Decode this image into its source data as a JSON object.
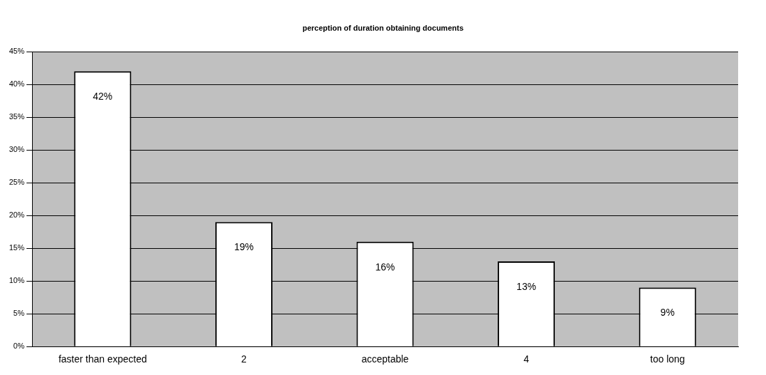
{
  "chart_data": {
    "type": "bar",
    "title": "perception of duration obtaining documents",
    "categories": [
      "faster than expected",
      "2",
      "acceptable",
      "4",
      "too long"
    ],
    "values": [
      42,
      19,
      16,
      13,
      9
    ],
    "value_labels": [
      "42%",
      "19%",
      "16%",
      "13%",
      "9%"
    ],
    "color": "#ffffff",
    "ylim": [
      0,
      45
    ],
    "yticks": [
      {
        "value": 0,
        "label": "0%"
      },
      {
        "value": 5,
        "label": "5%"
      },
      {
        "value": 10,
        "label": "10%"
      },
      {
        "value": 15,
        "label": "15%"
      },
      {
        "value": 20,
        "label": "20%"
      },
      {
        "value": 25,
        "label": "25%"
      },
      {
        "value": 30,
        "label": "30%"
      },
      {
        "value": 35,
        "label": "35%"
      },
      {
        "value": 40,
        "label": "40%"
      },
      {
        "value": 45,
        "label": "45%"
      }
    ],
    "grid": "y",
    "legend": false
  }
}
